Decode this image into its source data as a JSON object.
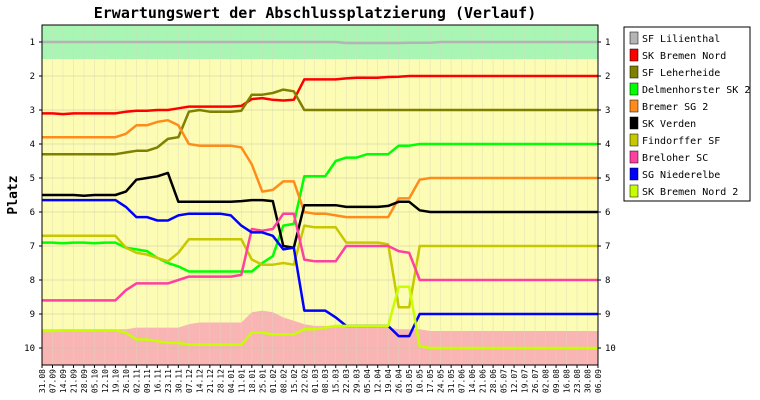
{
  "chart_data": {
    "type": "line",
    "title": "Erwartungswert der Abschlussplatzierung (Verlauf)",
    "xlabel": "",
    "ylabel": "Platz",
    "ylim": [
      0.5,
      10.5
    ],
    "y_reversed": true,
    "yticks": [
      "1",
      "2",
      "3",
      "4",
      "5",
      "6",
      "7",
      "8",
      "9",
      "10"
    ],
    "grid": true,
    "legend_position": "right",
    "x": [
      "31.08",
      "07.09",
      "14.09",
      "21.09",
      "28.09",
      "05.10",
      "12.10",
      "19.10",
      "26.10",
      "02.11",
      "09.11",
      "16.11",
      "23.11",
      "30.11",
      "07.12",
      "14.12",
      "21.12",
      "28.12",
      "04.01",
      "11.01",
      "18.01",
      "25.01",
      "01.02",
      "08.02",
      "15.02",
      "22.02",
      "01.03",
      "08.03",
      "15.03",
      "22.03",
      "29.03",
      "05.04",
      "12.04",
      "19.04",
      "26.04",
      "03.05",
      "10.05",
      "17.05",
      "24.05",
      "31.05",
      "07.06",
      "14.06",
      "21.06",
      "28.06",
      "05.07",
      "12.07",
      "19.07",
      "26.07",
      "02.08",
      "09.08",
      "16.08",
      "23.08",
      "30.08",
      "06.09"
    ],
    "bands": [
      {
        "from": 0.5,
        "to": 1.5,
        "color": "#a8f5b4"
      },
      {
        "from": 1.5,
        "to": 9.5,
        "color": "#fcfcb4"
      },
      {
        "from": 9.5,
        "to": 10.5,
        "color": "#f9b4b4"
      }
    ],
    "band_overlay": {
      "color": "#f9b4b4",
      "top": [
        9.45,
        9.45,
        9.45,
        9.45,
        9.45,
        9.45,
        9.45,
        9.45,
        9.45,
        9.4,
        9.4,
        9.4,
        9.4,
        9.4,
        9.3,
        9.25,
        9.25,
        9.25,
        9.25,
        9.25,
        8.95,
        8.9,
        8.95,
        9.1,
        9.2,
        9.3,
        9.35,
        9.35,
        9.35,
        9.35,
        9.35,
        9.35,
        9.35,
        9.4,
        9.45,
        9.45,
        9.45,
        9.5,
        9.5,
        9.5,
        9.5,
        9.5,
        9.5,
        9.5,
        9.5,
        9.5,
        9.5,
        9.5,
        9.5,
        9.5,
        9.5,
        9.5,
        9.5,
        9.5
      ]
    },
    "series": [
      {
        "name": "SF Lilienthal",
        "color": "#b4b4b4",
        "values": [
          1,
          1,
          1,
          1,
          1,
          1,
          1,
          1,
          1,
          1,
          1,
          1,
          1,
          1,
          1,
          1,
          1,
          1,
          1,
          1,
          1,
          1,
          1,
          1,
          1,
          1,
          1,
          1,
          1,
          1.03,
          1.03,
          1.03,
          1.03,
          1.03,
          1.03,
          1.02,
          1.02,
          1.02,
          1,
          1,
          1,
          1,
          1,
          1,
          1,
          1,
          1,
          1,
          1,
          1,
          1,
          1,
          1,
          1
        ]
      },
      {
        "name": "SK Bremen Nord",
        "color": "#ff0000",
        "values": [
          3.1,
          3.1,
          3.12,
          3.1,
          3.1,
          3.1,
          3.1,
          3.1,
          3.05,
          3.02,
          3.02,
          3.0,
          3.0,
          2.95,
          2.9,
          2.9,
          2.9,
          2.9,
          2.9,
          2.88,
          2.68,
          2.65,
          2.7,
          2.72,
          2.7,
          2.1,
          2.1,
          2.1,
          2.1,
          2.07,
          2.05,
          2.05,
          2.05,
          2.03,
          2.02,
          2.0,
          2.0,
          2.0,
          2.0,
          2.0,
          2.0,
          2.0,
          2.0,
          2.0,
          2.0,
          2.0,
          2.0,
          2.0,
          2.0,
          2.0,
          2.0,
          2.0,
          2.0,
          2.0
        ]
      },
      {
        "name": "SF Leherheide",
        "color": "#808000",
        "values": [
          4.3,
          4.3,
          4.3,
          4.3,
          4.3,
          4.3,
          4.3,
          4.3,
          4.25,
          4.2,
          4.2,
          4.1,
          3.85,
          3.8,
          3.05,
          3.0,
          3.05,
          3.05,
          3.05,
          3.02,
          2.55,
          2.55,
          2.5,
          2.4,
          2.45,
          3.0,
          3.0,
          3.0,
          3.0,
          3.0,
          3.0,
          3.0,
          3.0,
          3.0,
          3.0,
          3.0,
          3.0,
          3.0,
          3.0,
          3.0,
          3.0,
          3.0,
          3.0,
          3.0,
          3.0,
          3.0,
          3.0,
          3.0,
          3.0,
          3.0,
          3.0,
          3.0,
          3.0,
          3.0
        ]
      },
      {
        "name": "Delmenhorster SK 2",
        "color": "#00ff00",
        "values": [
          6.9,
          6.9,
          6.92,
          6.9,
          6.9,
          6.92,
          6.9,
          6.9,
          7.05,
          7.1,
          7.15,
          7.35,
          7.5,
          7.6,
          7.75,
          7.75,
          7.75,
          7.75,
          7.75,
          7.75,
          7.75,
          7.5,
          7.3,
          6.4,
          6.35,
          4.95,
          4.95,
          4.95,
          4.5,
          4.4,
          4.4,
          4.3,
          4.3,
          4.3,
          4.05,
          4.05,
          4.0,
          4.0,
          4.0,
          4.0,
          4.0,
          4.0,
          4.0,
          4.0,
          4.0,
          4.0,
          4.0,
          4.0,
          4.0,
          4.0,
          4.0,
          4.0,
          4.0,
          4.0
        ]
      },
      {
        "name": "Bremer SG 2",
        "color": "#ff8c1a",
        "values": [
          3.8,
          3.8,
          3.8,
          3.8,
          3.8,
          3.8,
          3.8,
          3.8,
          3.7,
          3.45,
          3.45,
          3.35,
          3.3,
          3.45,
          4.0,
          4.05,
          4.05,
          4.05,
          4.05,
          4.1,
          4.6,
          5.4,
          5.35,
          5.1,
          5.1,
          6.0,
          6.05,
          6.05,
          6.1,
          6.15,
          6.15,
          6.15,
          6.15,
          6.15,
          5.6,
          5.6,
          5.05,
          5.0,
          5.0,
          5.0,
          5.0,
          5.0,
          5.0,
          5.0,
          5.0,
          5.0,
          5.0,
          5.0,
          5.0,
          5.0,
          5.0,
          5.0,
          5.0,
          5.0
        ]
      },
      {
        "name": "SK Verden",
        "color": "#000000",
        "values": [
          5.5,
          5.5,
          5.5,
          5.5,
          5.52,
          5.5,
          5.5,
          5.5,
          5.4,
          5.05,
          5.0,
          4.95,
          4.85,
          5.7,
          5.7,
          5.7,
          5.7,
          5.7,
          5.7,
          5.68,
          5.65,
          5.65,
          5.68,
          7.0,
          7.05,
          5.8,
          5.8,
          5.8,
          5.8,
          5.85,
          5.85,
          5.85,
          5.85,
          5.82,
          5.7,
          5.7,
          5.95,
          6.0,
          6.0,
          6.0,
          6.0,
          6.0,
          6.0,
          6.0,
          6.0,
          6.0,
          6.0,
          6.0,
          6.0,
          6.0,
          6.0,
          6.0,
          6.0,
          6.0
        ]
      },
      {
        "name": "Findorffer SF",
        "color": "#c8c800",
        "values": [
          6.7,
          6.7,
          6.7,
          6.7,
          6.7,
          6.7,
          6.7,
          6.7,
          7.05,
          7.2,
          7.25,
          7.35,
          7.45,
          7.2,
          6.8,
          6.8,
          6.8,
          6.8,
          6.8,
          6.8,
          7.4,
          7.55,
          7.55,
          7.5,
          7.55,
          6.4,
          6.45,
          6.45,
          6.45,
          6.9,
          6.9,
          6.9,
          6.9,
          6.95,
          8.8,
          8.8,
          7.0,
          7.0,
          7.0,
          7.0,
          7.0,
          7.0,
          7.0,
          7.0,
          7.0,
          7.0,
          7.0,
          7.0,
          7.0,
          7.0,
          7.0,
          7.0,
          7.0,
          7.0
        ]
      },
      {
        "name": "Breloher SC",
        "color": "#ff40a0",
        "values": [
          8.6,
          8.6,
          8.6,
          8.6,
          8.6,
          8.6,
          8.6,
          8.6,
          8.3,
          8.1,
          8.1,
          8.1,
          8.1,
          8.0,
          7.9,
          7.9,
          7.9,
          7.9,
          7.9,
          7.85,
          6.5,
          6.55,
          6.5,
          6.05,
          6.05,
          7.4,
          7.45,
          7.45,
          7.45,
          7.0,
          7.0,
          7.0,
          7.0,
          7.0,
          7.15,
          7.2,
          8.0,
          8.0,
          8.0,
          8.0,
          8.0,
          8.0,
          8.0,
          8.0,
          8.0,
          8.0,
          8.0,
          8.0,
          8.0,
          8.0,
          8.0,
          8.0,
          8.0,
          8.0
        ]
      },
      {
        "name": "SG Niederelbe",
        "color": "#0000ff",
        "values": [
          5.65,
          5.65,
          5.65,
          5.65,
          5.65,
          5.65,
          5.65,
          5.65,
          5.85,
          6.15,
          6.15,
          6.25,
          6.25,
          6.1,
          6.05,
          6.05,
          6.05,
          6.05,
          6.1,
          6.4,
          6.6,
          6.6,
          6.7,
          7.1,
          7.05,
          8.9,
          8.9,
          8.9,
          9.1,
          9.35,
          9.35,
          9.35,
          9.35,
          9.35,
          9.65,
          9.65,
          9.0,
          9.0,
          9.0,
          9.0,
          9.0,
          9.0,
          9.0,
          9.0,
          9.0,
          9.0,
          9.0,
          9.0,
          9.0,
          9.0,
          9.0,
          9.0,
          9.0,
          9.0
        ]
      },
      {
        "name": "SK Bremen Nord 2",
        "color": "#c8ff00",
        "values": [
          9.5,
          9.5,
          9.48,
          9.48,
          9.48,
          9.48,
          9.48,
          9.48,
          9.55,
          9.75,
          9.75,
          9.8,
          9.85,
          9.85,
          9.9,
          9.9,
          9.9,
          9.9,
          9.9,
          9.9,
          9.55,
          9.55,
          9.6,
          9.6,
          9.6,
          9.45,
          9.45,
          9.4,
          9.35,
          9.35,
          9.35,
          9.35,
          9.35,
          9.35,
          8.2,
          8.2,
          9.95,
          10.0,
          10.0,
          10.0,
          10.0,
          10.0,
          10.0,
          10.0,
          10.0,
          10.0,
          10.0,
          10.0,
          10.0,
          10.0,
          10.0,
          10.0,
          10.0,
          10.0
        ]
      }
    ]
  }
}
